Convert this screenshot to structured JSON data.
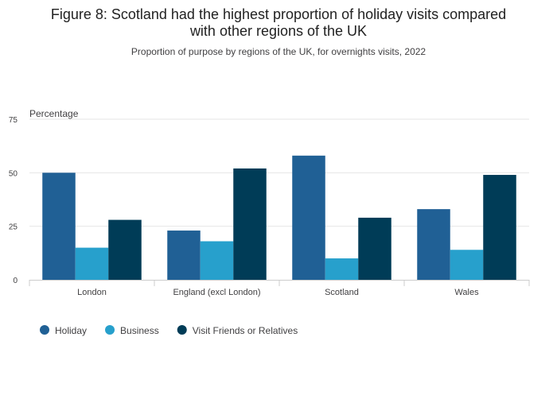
{
  "title_line1": "Figure 8: Scotland had the highest proportion of holiday visits compared",
  "title_line2": "with other regions of the UK",
  "subtitle": "Proportion of purpose by regions of the UK, for overnights visits, 2022",
  "chart_data": {
    "type": "bar",
    "ylabel": "Percentage",
    "ylim": [
      0,
      75
    ],
    "yticks": [
      0,
      25,
      50,
      75
    ],
    "grid": true,
    "legend_position": "bottom-left",
    "categories": [
      "London",
      "England (excl London)",
      "Scotland",
      "Wales"
    ],
    "series": [
      {
        "name": "Holiday",
        "color": "#206095",
        "values": [
          50,
          23,
          58,
          33
        ]
      },
      {
        "name": "Business",
        "color": "#27a0cc",
        "values": [
          15,
          18,
          10,
          14
        ]
      },
      {
        "name": "Visit Friends or Relatives",
        "color": "#003c57",
        "values": [
          28,
          52,
          29,
          49
        ]
      }
    ]
  }
}
